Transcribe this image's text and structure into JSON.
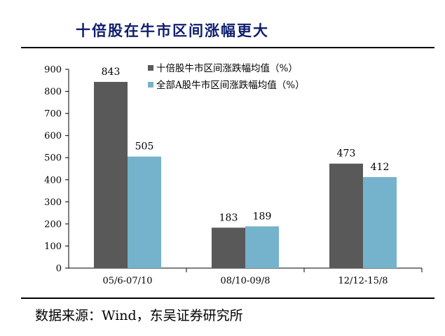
{
  "header": {
    "title": "十倍股在牛市区间涨幅更大"
  },
  "footer": {
    "source": "数据来源：Wind，东吴证券研究所"
  },
  "chart_data": {
    "type": "bar",
    "title": "十倍股在牛市区间涨幅更大",
    "xlabel": "",
    "ylabel": "",
    "categories": [
      "05/6-07/10",
      "08/10-09/8",
      "12/12-15/8"
    ],
    "series": [
      {
        "name": "十倍股牛市区间涨跌幅均值（%）",
        "values": [
          843,
          183,
          473
        ],
        "color": "#595959"
      },
      {
        "name": "全部A股牛市区间涨跌幅均值（%）",
        "values": [
          505,
          189,
          412
        ],
        "color": "#74b3cb"
      }
    ],
    "ylim": [
      0,
      900
    ],
    "yticks": [
      0,
      100,
      200,
      300,
      400,
      500,
      600,
      700,
      800,
      900
    ],
    "grid": false,
    "legend": "top-right"
  }
}
